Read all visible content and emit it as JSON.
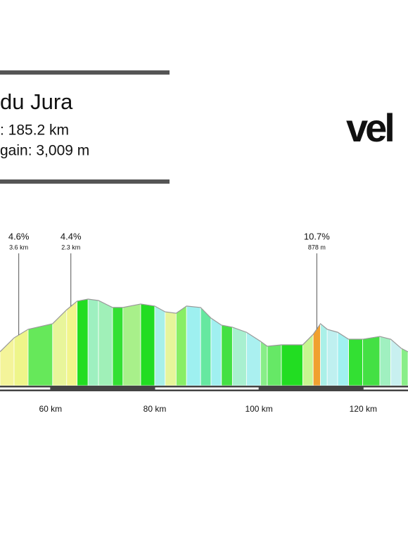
{
  "header": {
    "title": "du Jura",
    "distance": ": 185.2 km",
    "gain": "gain: 3,009 m",
    "logo": "vel"
  },
  "chart_data": {
    "type": "area",
    "x": [
      50.3,
      53.0,
      55.7,
      60.4,
      63.1,
      65.1,
      67.2,
      69.2,
      71.9,
      73.9,
      77.3,
      80.0,
      82.0,
      84.1,
      86.1,
      88.8,
      90.8,
      92.8,
      94.9,
      97.6,
      100.3,
      101.6,
      104.3,
      108.4,
      110.4,
      111.8,
      113.1,
      115.1,
      117.2,
      119.9,
      123.2,
      125.3,
      127.3,
      128.6
    ],
    "values": [
      394,
      474,
      523,
      555,
      635,
      684,
      696,
      688,
      648,
      648,
      668,
      656,
      623,
      615,
      656,
      648,
      587,
      547,
      535,
      506,
      454,
      426,
      434,
      434,
      494,
      555,
      523,
      506,
      466,
      466,
      482,
      466,
      414,
      394
    ],
    "colors": [
      "#f4f49a",
      "#eef58a",
      "#66e85a",
      "#e8f59a",
      "#f2f58c",
      "#22dd22",
      "#9ef0c0",
      "#a0f0b8",
      "#33e033",
      "#a8f08a",
      "#22dd22",
      "#a8f0e8",
      "#e6f59a",
      "#88ee66",
      "#9ef0f0",
      "#66e8a0",
      "#a0f0f0",
      "#44e044",
      "#a8f0d0",
      "#aaf0f0",
      "#88ee88",
      "#66e866",
      "#22dd22",
      "#c8f590",
      "#f0a030",
      "#aaf0e8",
      "#bff0f0",
      "#a0f0f0",
      "#33e033",
      "#44e044",
      "#a0f0c0",
      "#c8f0f0",
      "#88ee88"
    ],
    "xlim": [
      50.3,
      128.6
    ],
    "ylim": [
      200,
      1200
    ],
    "xticks": [
      {
        "value": 60,
        "label": "60 km"
      },
      {
        "value": 80,
        "label": "80 km"
      },
      {
        "value": 100,
        "label": "100 km"
      },
      {
        "value": 120,
        "label": "120 km"
      }
    ],
    "annotations": [
      {
        "x": 53.9,
        "label": "4.6%",
        "sub": "3.6 km"
      },
      {
        "x": 63.9,
        "label": "4.4%",
        "sub": "2.3 km"
      },
      {
        "x": 111.1,
        "label": "10.7%",
        "sub": "878 m"
      }
    ]
  }
}
